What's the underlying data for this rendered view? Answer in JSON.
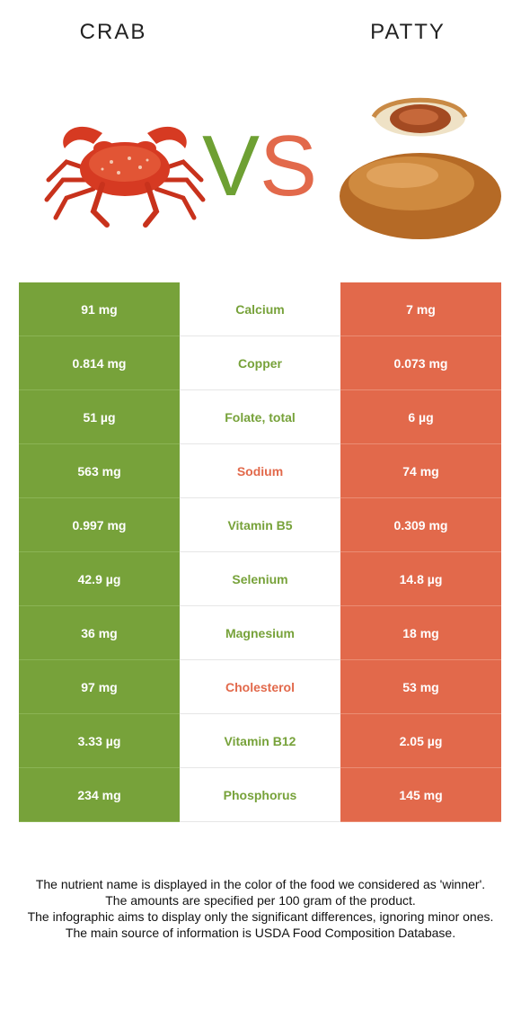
{
  "foods": {
    "left": "CRAB",
    "right": "PATTY"
  },
  "vs": {
    "v": "V",
    "s": "S"
  },
  "colors": {
    "winner_left": "#77a23a",
    "winner_right": "#e2694b"
  },
  "rows": [
    {
      "left": "91 mg",
      "nutrient": "Calcium",
      "right": "7 mg",
      "winner": "left"
    },
    {
      "left": "0.814 mg",
      "nutrient": "Copper",
      "right": "0.073 mg",
      "winner": "left"
    },
    {
      "left": "51 µg",
      "nutrient": "Folate, total",
      "right": "6 µg",
      "winner": "left"
    },
    {
      "left": "563 mg",
      "nutrient": "Sodium",
      "right": "74 mg",
      "winner": "right"
    },
    {
      "left": "0.997 mg",
      "nutrient": "Vitamin B5",
      "right": "0.309 mg",
      "winner": "left"
    },
    {
      "left": "42.9 µg",
      "nutrient": "Selenium",
      "right": "14.8 µg",
      "winner": "left"
    },
    {
      "left": "36 mg",
      "nutrient": "Magnesium",
      "right": "18 mg",
      "winner": "left"
    },
    {
      "left": "97 mg",
      "nutrient": "Cholesterol",
      "right": "53 mg",
      "winner": "right"
    },
    {
      "left": "3.33 µg",
      "nutrient": "Vitamin B12",
      "right": "2.05 µg",
      "winner": "left"
    },
    {
      "left": "234 mg",
      "nutrient": "Phosphorus",
      "right": "145 mg",
      "winner": "left"
    }
  ],
  "footnote": [
    "The nutrient name is displayed in the color of the food we considered as 'winner'.",
    "The amounts are specified per 100 gram of the product.",
    "The infographic aims to display only the significant differences, ignoring minor ones.",
    "The main source of information is USDA Food Composition Database."
  ]
}
